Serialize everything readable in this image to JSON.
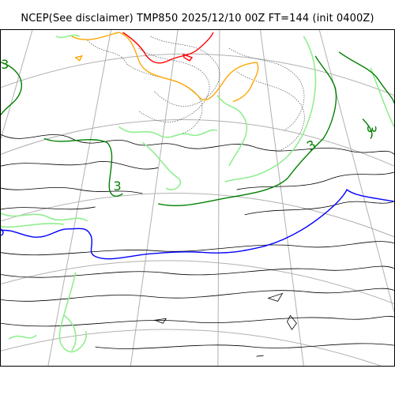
{
  "title": "NCEP(See disclaimer) TMP850 2025/12/10 00Z FT=144 (init 0400Z)",
  "colors": {
    "graticule": "#b0b0b0",
    "coast": "#000000",
    "contour": "#505050",
    "isotherm_3": "#008000",
    "isotherm_light": "#90ee90",
    "isotherm_zero": "#0000ff",
    "isotherm_orange": "#ffa500",
    "isotherm_red": "#ff0000"
  },
  "map_labels": {
    "label_left_top": "3",
    "label_center": "3",
    "label_right_1": "3",
    "label_right_2": "3"
  }
}
